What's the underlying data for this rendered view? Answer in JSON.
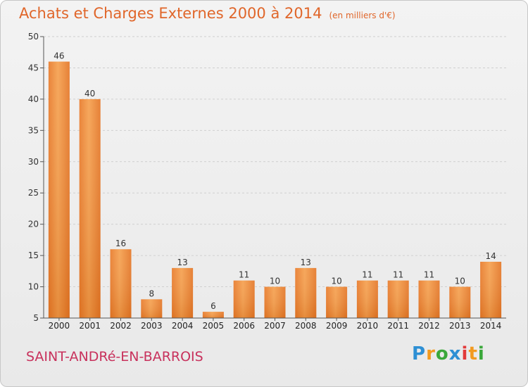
{
  "title": "Achats et Charges Externes 2000 à 2014",
  "subtitle": "(en milliers d'€)",
  "commune": "SAINT-ANDRé-EN-BARROIS",
  "logo": "Proxiti",
  "colors": {
    "bar": "#f0913a",
    "bar_dark": "#e06a1e",
    "title": "#e0662a",
    "commune": "#c8315c"
  },
  "chart_data": {
    "type": "bar",
    "categories": [
      "2000",
      "2001",
      "2002",
      "2003",
      "2004",
      "2005",
      "2006",
      "2007",
      "2008",
      "2009",
      "2010",
      "2011",
      "2012",
      "2013",
      "2014"
    ],
    "values": [
      46,
      40,
      16,
      8,
      13,
      6,
      11,
      10,
      13,
      10,
      11,
      11,
      11,
      10,
      14
    ],
    "ylim": [
      5,
      50
    ],
    "yticks": [
      5,
      10,
      15,
      20,
      25,
      30,
      35,
      40,
      45,
      50
    ],
    "grid": true,
    "xlabel": "",
    "ylabel": ""
  }
}
